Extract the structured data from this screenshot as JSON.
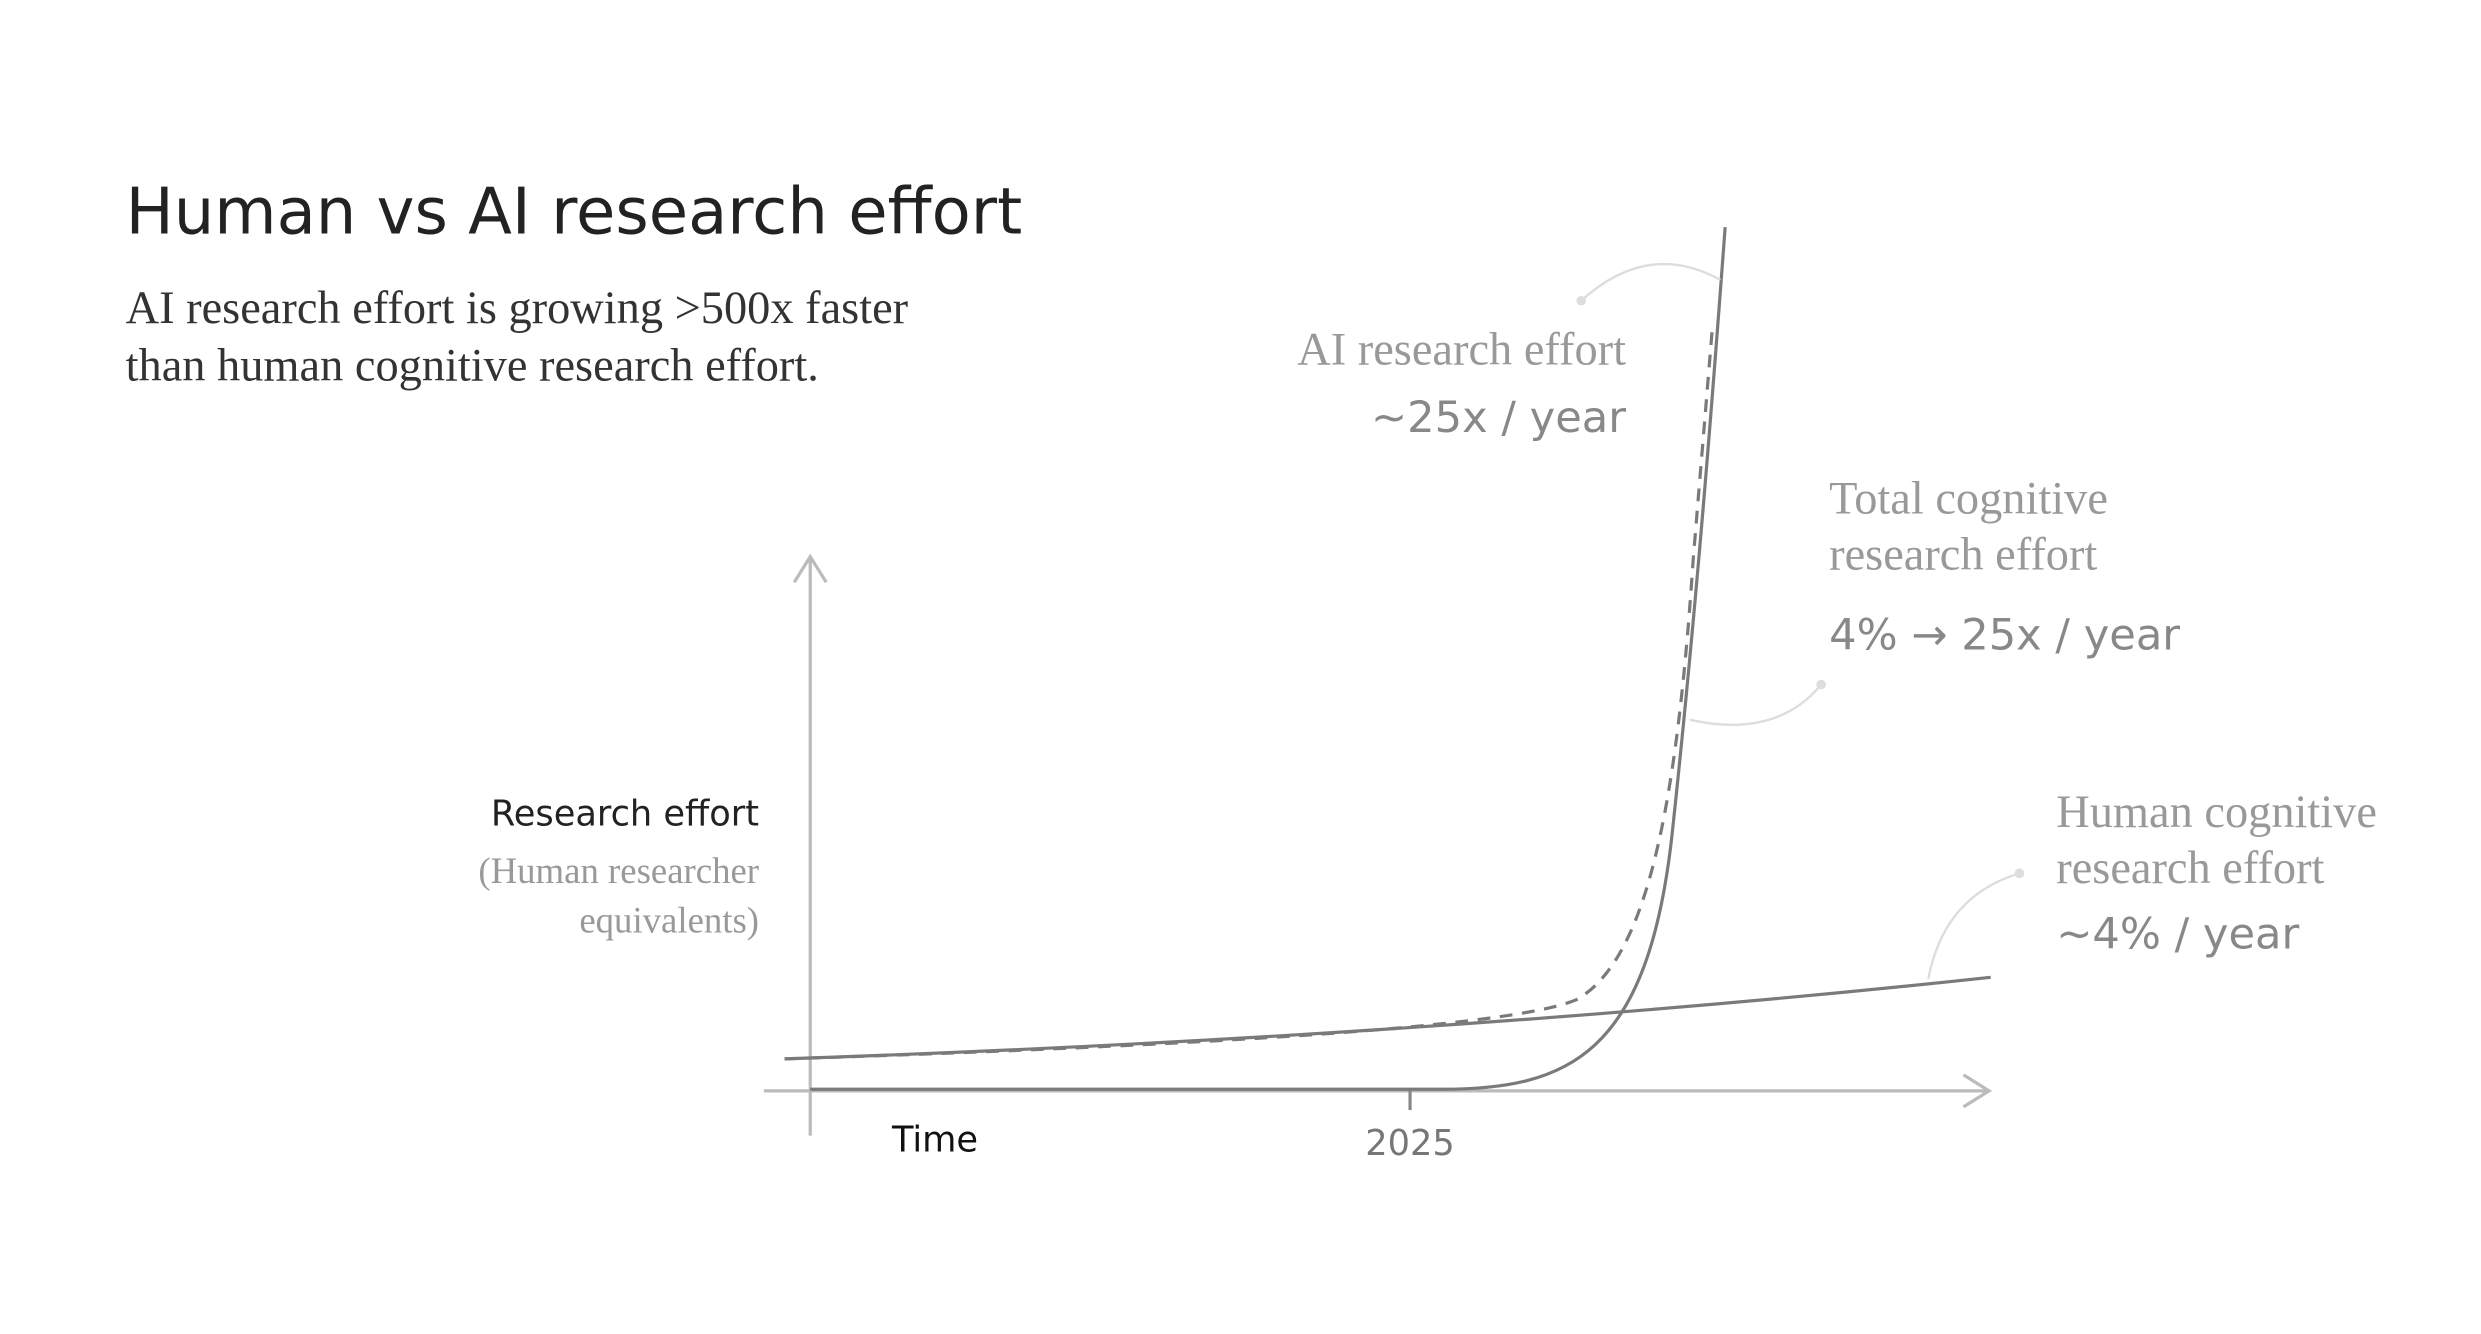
{
  "header": {
    "title": "Human vs AI research effort",
    "subtitle": [
      "AI research effort is growing >500x faster",
      "than human cognitive research effort."
    ]
  },
  "axes": {
    "y_label": "Research effort",
    "y_sublabel": [
      "(Human researcher",
      "equivalents)"
    ],
    "x_label": "Time",
    "x_tick": "2025"
  },
  "annotations": [
    {
      "name": [
        "AI research effort"
      ],
      "rate": "~25x / year"
    },
    {
      "name": [
        "Total cognitive",
        "research effort"
      ],
      "rate": "4% → 25x / year"
    },
    {
      "name": [
        "Human cognitive",
        "research effort"
      ],
      "rate": "~4% / year"
    }
  ]
}
